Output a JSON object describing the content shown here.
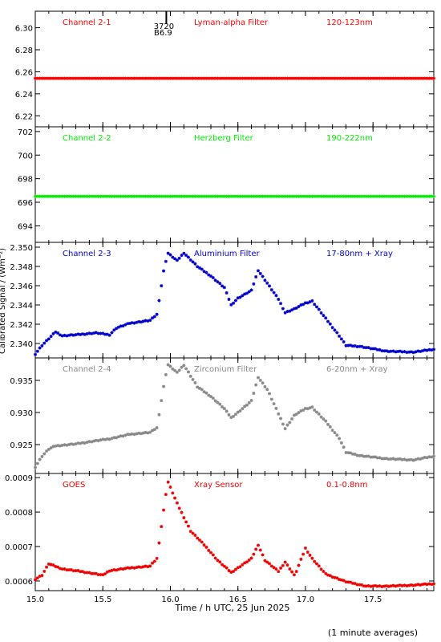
{
  "figure": {
    "ylabel_shared": "Calibrated Signal / (Wm⁻²)",
    "xlabel": "Time / h UTC, 25 Jun 2025",
    "footnote": "(1 minute averages)",
    "x_range": [
      15.0,
      17.95
    ],
    "x_ticks": [
      "15.0",
      "15.5",
      "16.0",
      "16.5",
      "17.0",
      "17.5"
    ],
    "x_tick_values": [
      15.0,
      15.5,
      16.0,
      16.5,
      17.0,
      17.5
    ],
    "flare_marker": {
      "x": 15.97,
      "label_top": "3720",
      "label_bottom": "B6.9"
    }
  },
  "chart_data": [
    {
      "type": "scatter",
      "channel": "Channel 2-1",
      "filter": "Lyman-alpha Filter",
      "band": "120-123nm",
      "color": "#ff0000",
      "ylim": [
        6.21,
        6.315
      ],
      "y_ticks": [
        "6.22",
        "6.24",
        "6.26",
        "6.28",
        "6.30"
      ],
      "y_tick_values": [
        6.22,
        6.24,
        6.26,
        6.28,
        6.3
      ],
      "series": [
        {
          "x": [
            15.0,
            17.95
          ],
          "values": [
            6.254,
            6.254
          ]
        }
      ]
    },
    {
      "type": "scatter",
      "channel": "Channel 2-2",
      "filter": "Herzberg Filter",
      "band": "190-222nm",
      "color": "#00ee00",
      "ylim": [
        692.6,
        702.4
      ],
      "y_ticks": [
        "694",
        "696",
        "698",
        "700",
        "702"
      ],
      "y_tick_values": [
        694,
        696,
        698,
        700,
        702
      ],
      "series": [
        {
          "x": [
            15.0,
            17.95
          ],
          "values": [
            696.5,
            696.5
          ]
        }
      ]
    },
    {
      "type": "scatter",
      "channel": "Channel 2-3",
      "filter": "Aluminium Filter",
      "band": "17-80nm + Xray",
      "color": "#0000cc",
      "ylim": [
        2.3385,
        2.3505
      ],
      "y_ticks": [
        "2.340",
        "2.342",
        "2.344",
        "2.346",
        "2.348",
        "2.350"
      ],
      "y_tick_values": [
        2.34,
        2.342,
        2.344,
        2.346,
        2.348,
        2.35
      ],
      "series": [
        {
          "x": [
            15.0,
            15.05,
            15.1,
            15.15,
            15.2,
            15.3,
            15.45,
            15.55,
            15.6,
            15.7,
            15.85,
            15.9,
            15.95,
            15.98,
            16.05,
            16.1,
            16.2,
            16.3,
            16.4,
            16.45,
            16.5,
            16.6,
            16.65,
            16.72,
            16.8,
            16.85,
            16.92,
            17.0,
            17.05,
            17.15,
            17.25,
            17.3,
            17.4,
            17.6,
            17.8,
            17.95
          ],
          "values": [
            2.3389,
            2.3398,
            2.3405,
            2.3412,
            2.3408,
            2.3409,
            2.3411,
            2.3409,
            2.3416,
            2.3421,
            2.3424,
            2.343,
            2.3475,
            2.3494,
            2.3486,
            2.3494,
            2.348,
            2.347,
            2.3458,
            2.344,
            2.3447,
            2.3455,
            2.3476,
            2.3462,
            2.3446,
            2.3432,
            2.3436,
            2.3442,
            2.3444,
            2.3426,
            2.3408,
            2.3398,
            2.3397,
            2.3392,
            2.3391,
            2.3394
          ]
        }
      ]
    },
    {
      "type": "scatter",
      "channel": "Channel 2-4",
      "filter": "Zirconium Filter",
      "band": "6-20nm + Xray",
      "color": "#888888",
      "ylim": [
        0.9205,
        0.9385
      ],
      "y_ticks": [
        "0.925",
        "0.930",
        "0.935"
      ],
      "y_tick_values": [
        0.925,
        0.93,
        0.935
      ],
      "series": [
        {
          "x": [
            15.0,
            15.05,
            15.1,
            15.15,
            15.3,
            15.45,
            15.55,
            15.7,
            15.85,
            15.9,
            15.95,
            15.98,
            16.05,
            16.1,
            16.2,
            16.3,
            16.4,
            16.45,
            16.5,
            16.6,
            16.65,
            16.72,
            16.8,
            16.85,
            16.92,
            17.0,
            17.05,
            17.15,
            17.25,
            17.3,
            17.4,
            17.6,
            17.8,
            17.95
          ],
          "values": [
            0.9215,
            0.9232,
            0.9243,
            0.9248,
            0.9251,
            0.9256,
            0.9259,
            0.9266,
            0.9269,
            0.9276,
            0.934,
            0.9375,
            0.9362,
            0.9374,
            0.934,
            0.9325,
            0.9306,
            0.9292,
            0.93,
            0.9318,
            0.9355,
            0.9335,
            0.9298,
            0.9275,
            0.9296,
            0.9306,
            0.9308,
            0.9286,
            0.926,
            0.9238,
            0.9233,
            0.9228,
            0.9226,
            0.9232
          ]
        }
      ]
    },
    {
      "type": "scatter",
      "channel": "GOES",
      "filter": "Xray Sensor",
      "band": "0.1-0.8nm",
      "color": "#ee0000",
      "ylim": [
        0.000572,
        0.000912
      ],
      "y_ticks": [
        "0.0006",
        "0.0007",
        "0.0008",
        "0.0009"
      ],
      "y_tick_values": [
        0.0006,
        0.0007,
        0.0008,
        0.0009
      ],
      "series": [
        {
          "x": [
            15.0,
            15.05,
            15.1,
            15.2,
            15.35,
            15.5,
            15.55,
            15.7,
            15.85,
            15.9,
            15.95,
            15.98,
            16.05,
            16.15,
            16.25,
            16.35,
            16.45,
            16.5,
            16.6,
            16.65,
            16.7,
            16.8,
            16.85,
            16.92,
            17.0,
            17.05,
            17.15,
            17.3,
            17.45,
            17.6,
            17.8,
            17.95
          ],
          "values": [
            0.000605,
            0.000617,
            0.00065,
            0.000635,
            0.000627,
            0.000617,
            0.00063,
            0.000638,
            0.000643,
            0.000665,
            0.000805,
            0.00089,
            0.000825,
            0.000745,
            0.000705,
            0.00066,
            0.000625,
            0.000638,
            0.000665,
            0.000705,
            0.00066,
            0.000628,
            0.000655,
            0.000615,
            0.000695,
            0.000665,
            0.00062,
            0.000598,
            0.000585,
            0.000585,
            0.000588,
            0.000592
          ]
        }
      ]
    }
  ]
}
